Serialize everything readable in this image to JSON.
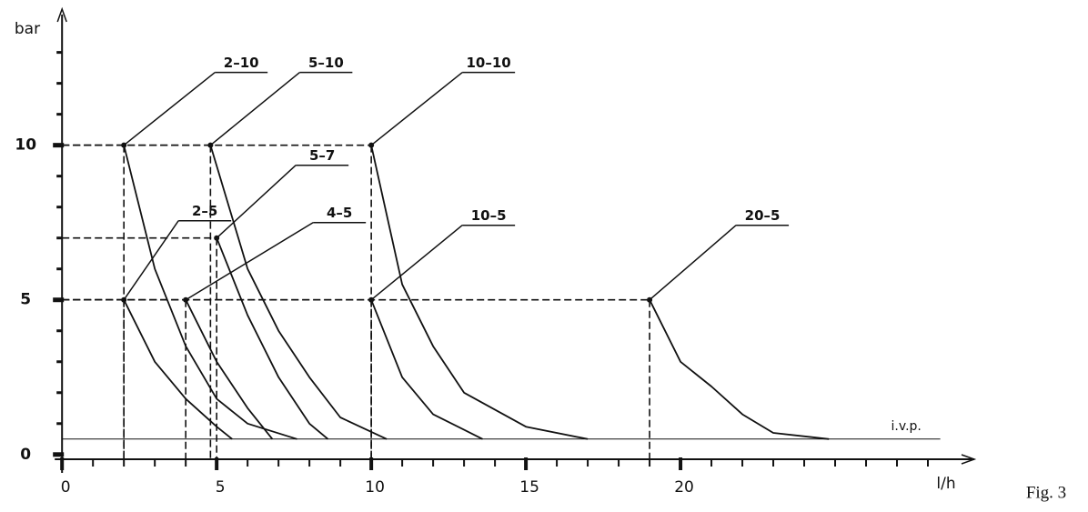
{
  "chart_data": {
    "type": "line",
    "caption": "Fig. 3",
    "y_label": "bar",
    "x_label": "l/h",
    "xlim": [
      -0.3,
      29.5
    ],
    "ylim": [
      -0.3,
      14.4
    ],
    "xticks": [
      0,
      5,
      10,
      15,
      20
    ],
    "yticks": [
      0,
      5,
      10
    ],
    "reference": {
      "label": "i.v.p.",
      "value": 0.5
    },
    "series": [
      {
        "name": "2–10",
        "x": [
          2,
          3,
          4,
          5,
          6,
          7.6
        ],
        "values": [
          10,
          6,
          3.5,
          1.8,
          1,
          0.5
        ]
      },
      {
        "name": "5–10",
        "x": [
          4.8,
          6,
          7,
          8,
          9,
          10.5
        ],
        "values": [
          10,
          6,
          4,
          2.5,
          1.2,
          0.5
        ]
      },
      {
        "name": "10–10",
        "x": [
          10,
          11,
          12,
          13,
          15,
          17
        ],
        "values": [
          10,
          5.5,
          3.5,
          2,
          0.9,
          0.5
        ]
      },
      {
        "name": "5–7",
        "x": [
          5,
          6,
          7,
          8,
          8.6
        ],
        "values": [
          7,
          4.5,
          2.5,
          1,
          0.5
        ]
      },
      {
        "name": "2–5",
        "x": [
          2,
          3,
          4,
          5,
          5.5
        ],
        "values": [
          5,
          3,
          1.8,
          0.9,
          0.5
        ]
      },
      {
        "name": "4–5",
        "x": [
          4,
          5,
          6,
          6.8
        ],
        "values": [
          5,
          3,
          1.5,
          0.5
        ]
      },
      {
        "name": "10–5",
        "x": [
          10,
          11,
          12,
          13.6
        ],
        "values": [
          5,
          2.5,
          1.3,
          0.5
        ]
      },
      {
        "name": "20–5",
        "x": [
          19,
          20,
          21,
          22,
          23,
          24.8
        ],
        "values": [
          5,
          3,
          2.2,
          1.3,
          0.7,
          0.5
        ]
      }
    ]
  }
}
